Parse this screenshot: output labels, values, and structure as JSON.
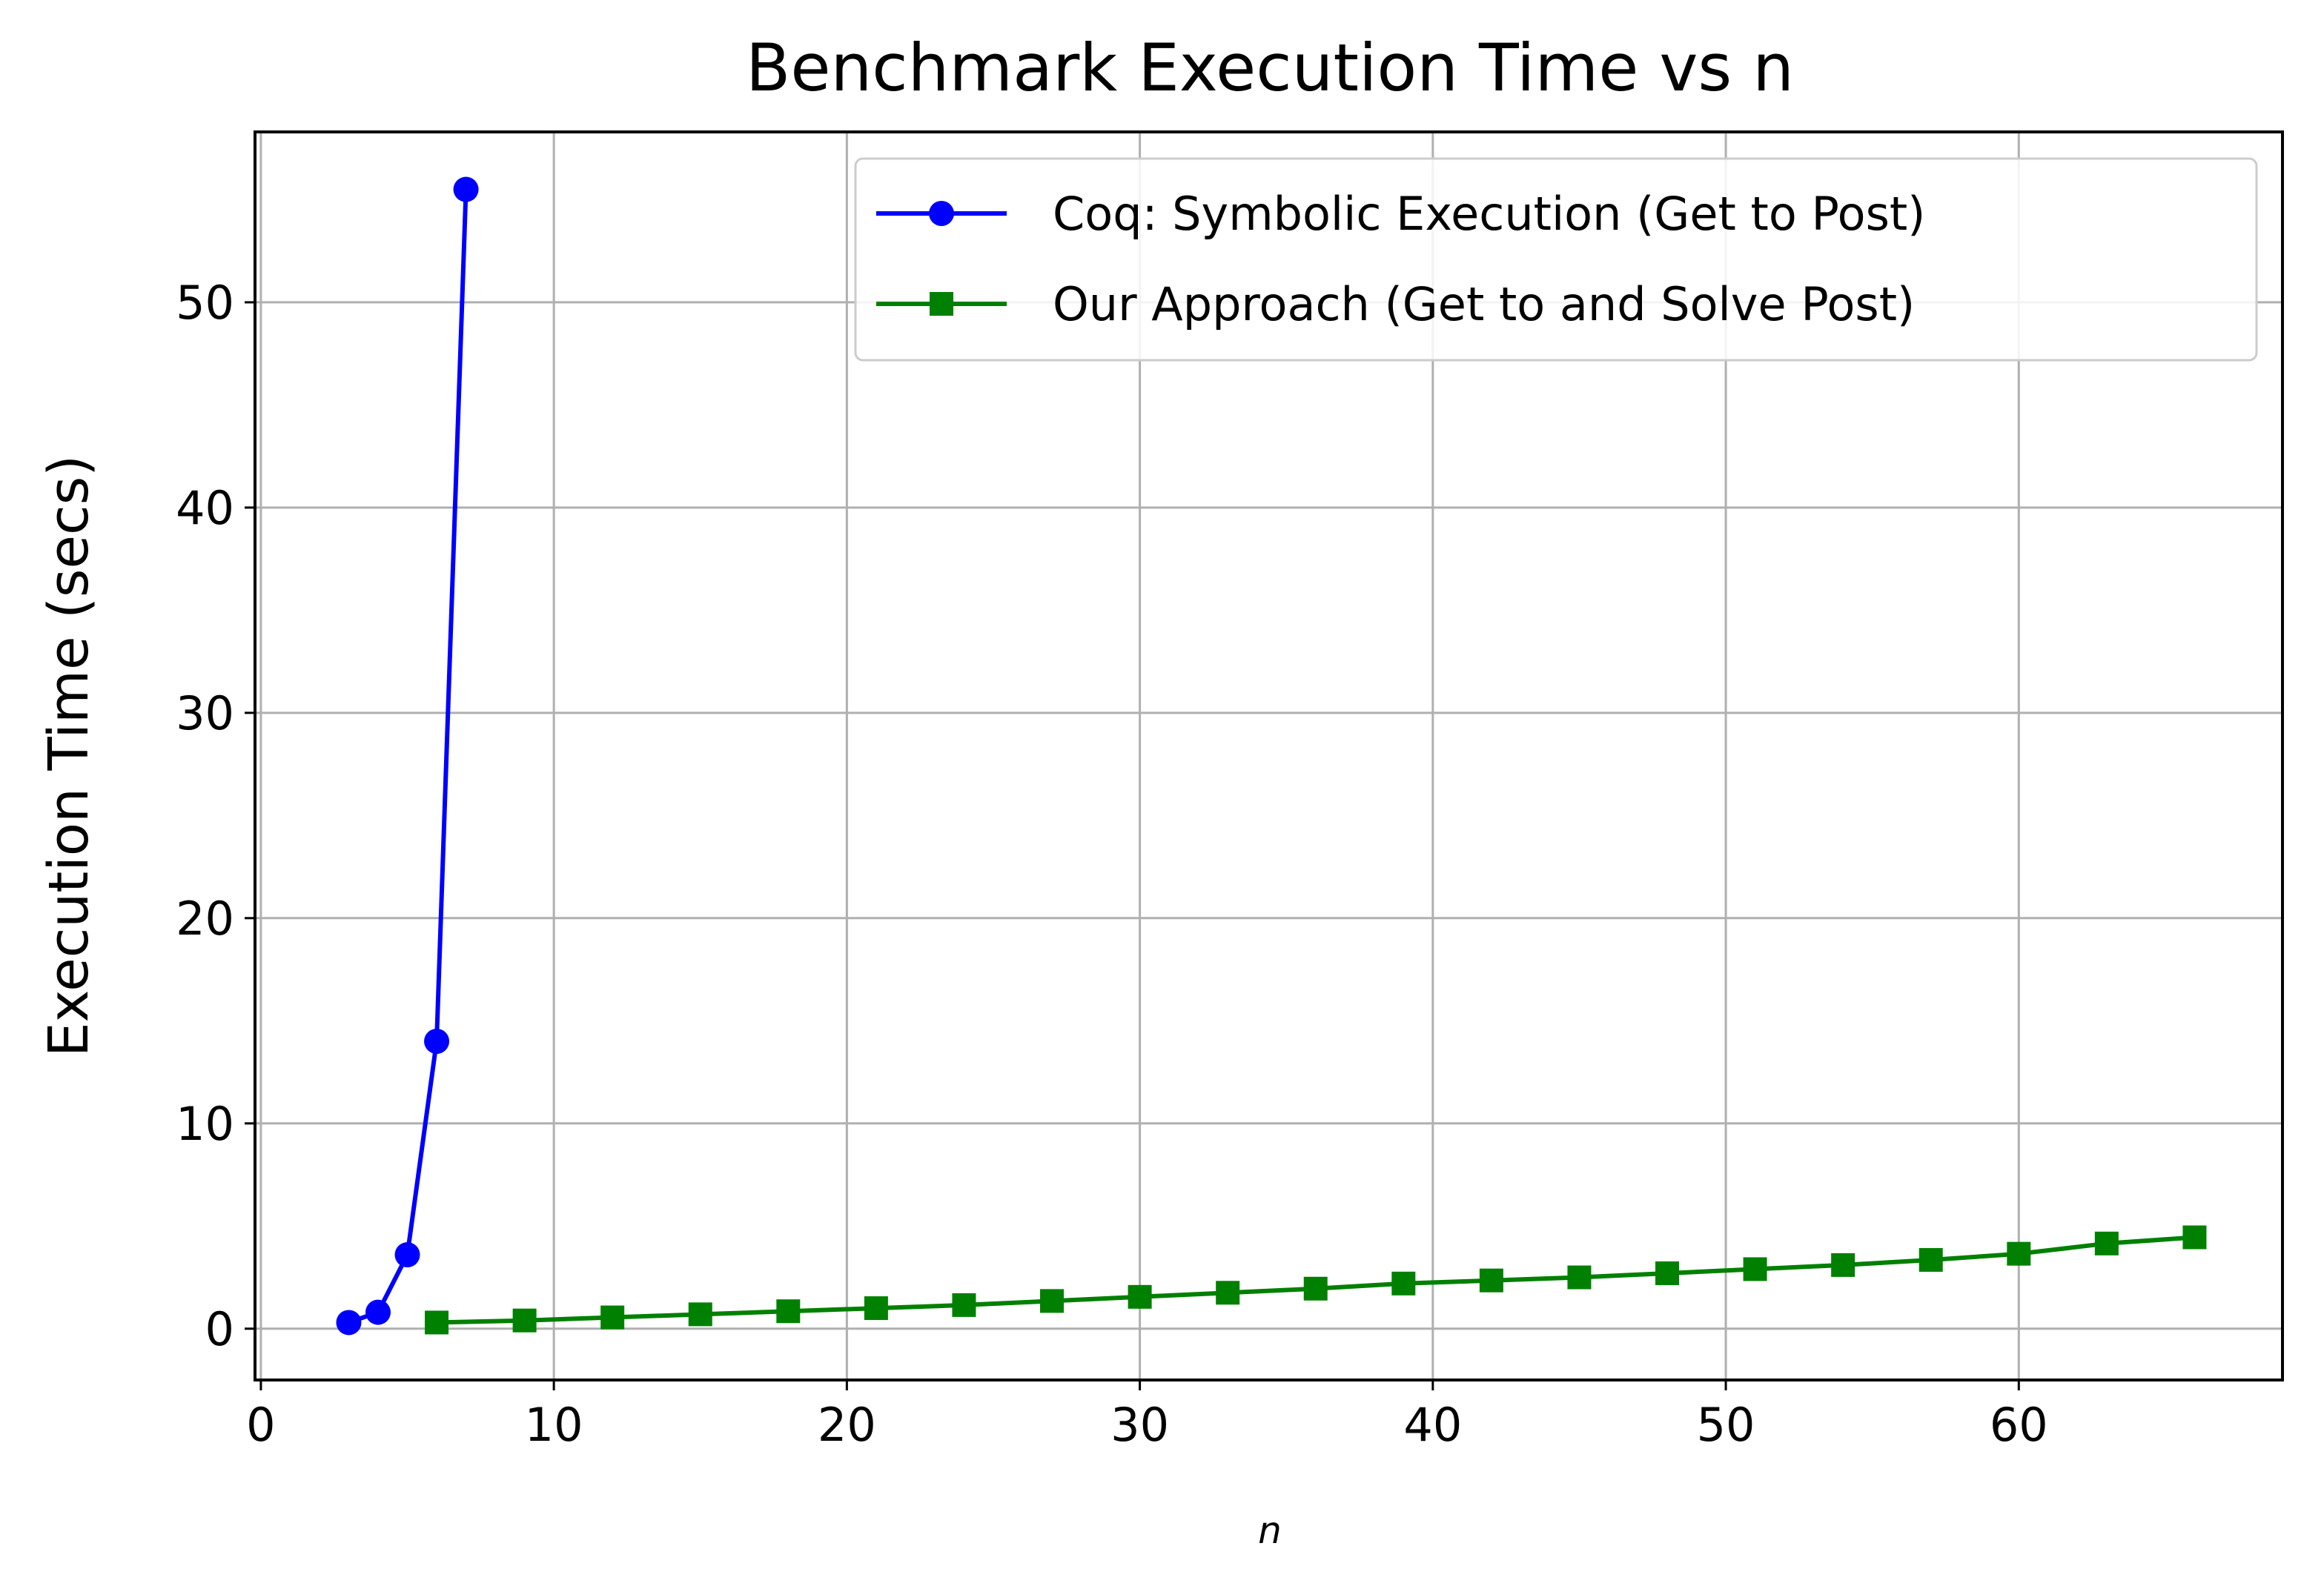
{
  "chart_data": {
    "type": "line",
    "title": "Benchmark Execution Time vs n",
    "xlabel": "n",
    "ylabel": "Execution Time (secs)",
    "xlim": [
      -0.2,
      69
    ],
    "ylim": [
      -2.5,
      58.3
    ],
    "xticks": [
      0,
      10,
      20,
      30,
      40,
      50,
      60
    ],
    "yticks": [
      0,
      10,
      20,
      30,
      40,
      50
    ],
    "grid": true,
    "legend_position": "top-right",
    "series": [
      {
        "name": "Coq: Symbolic Execution (Get to Post)",
        "color": "#0000ff",
        "marker": "circle",
        "x": [
          3,
          4,
          5,
          6,
          7
        ],
        "y": [
          0.3,
          0.8,
          3.6,
          14.0,
          55.5
        ]
      },
      {
        "name": "Our Approach (Get to and Solve Post)",
        "color": "#008000",
        "marker": "square",
        "x": [
          6,
          9,
          12,
          15,
          18,
          21,
          24,
          27,
          30,
          33,
          36,
          39,
          42,
          45,
          48,
          51,
          54,
          57,
          60,
          63,
          66
        ],
        "y": [
          0.3,
          0.4,
          0.55,
          0.7,
          0.85,
          1.0,
          1.15,
          1.35,
          1.55,
          1.75,
          1.95,
          2.2,
          2.35,
          2.5,
          2.7,
          2.9,
          3.1,
          3.35,
          3.65,
          4.15,
          4.45
        ]
      }
    ]
  }
}
